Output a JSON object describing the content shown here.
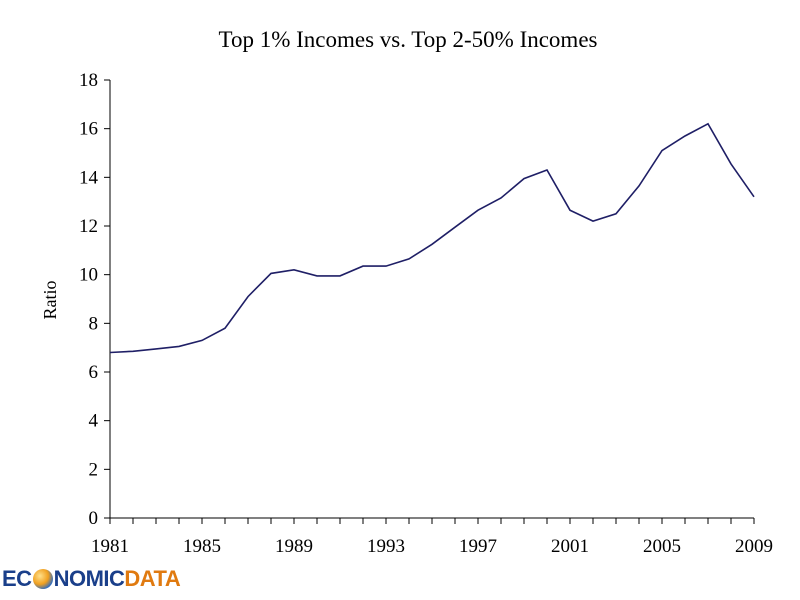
{
  "chart_data": {
    "type": "line",
    "title": "Top 1% Incomes vs. Top 2-50% Incomes",
    "xlabel": "",
    "ylabel": "Ratio",
    "ylim": [
      0,
      18
    ],
    "yticks": [
      "0",
      "2",
      "4",
      "6",
      "8",
      "10",
      "12",
      "14",
      "16",
      "18"
    ],
    "xlim": [
      1981,
      2009
    ],
    "xticks": [
      "1981",
      "1985",
      "1989",
      "1993",
      "1997",
      "2001",
      "2005",
      "2009"
    ],
    "grid": false,
    "series": [
      {
        "color": "#1f1f66",
        "x": [
          1981,
          1982,
          1983,
          1984,
          1985,
          1986,
          1987,
          1988,
          1989,
          1990,
          1991,
          1992,
          1993,
          1994,
          1995,
          1996,
          1997,
          1998,
          1999,
          2000,
          2001,
          2002,
          2003,
          2004,
          2005,
          2006,
          2007,
          2008,
          2009
        ],
        "values": [
          6.8,
          6.85,
          6.95,
          7.05,
          7.3,
          7.8,
          9.1,
          10.05,
          10.2,
          9.95,
          9.95,
          10.35,
          10.35,
          10.65,
          11.25,
          11.95,
          12.65,
          13.15,
          13.95,
          14.3,
          12.65,
          12.2,
          12.5,
          13.65,
          15.1,
          15.7,
          16.2,
          14.55,
          13.2
        ]
      }
    ]
  },
  "watermark": {
    "part1": "EC",
    "part2": "NOMIC",
    "part3": "DATA"
  }
}
